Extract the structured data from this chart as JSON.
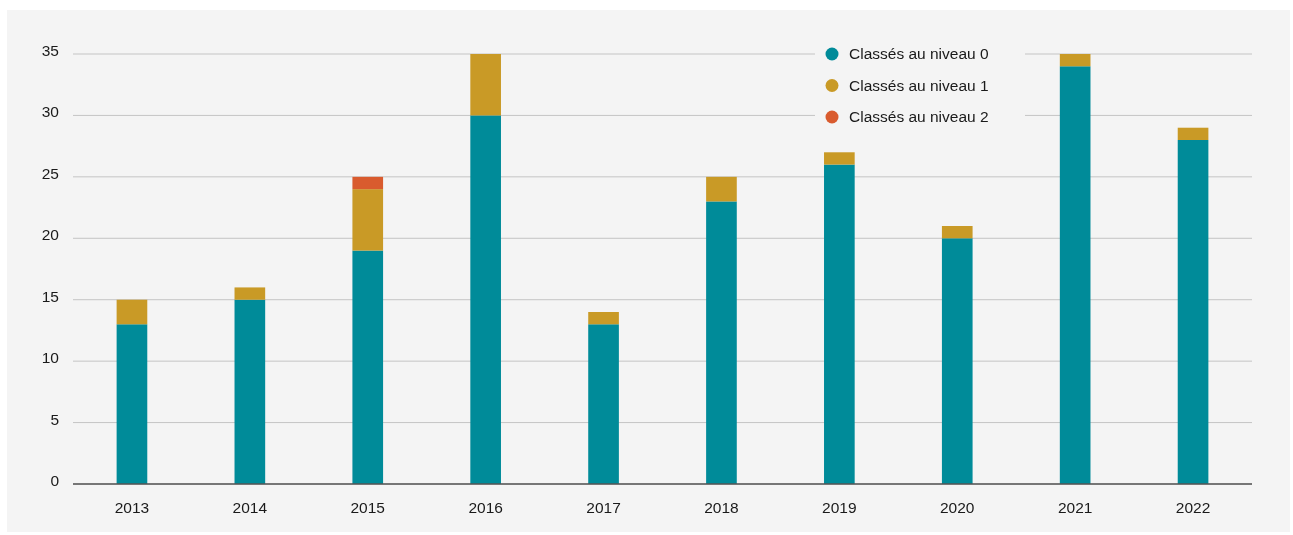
{
  "chart_data": {
    "type": "bar",
    "stacked": true,
    "categories": [
      "2013",
      "2014",
      "2015",
      "2016",
      "2017",
      "2018",
      "2019",
      "2020",
      "2021",
      "2022"
    ],
    "series": [
      {
        "name": "Classés au niveau 0",
        "color": "#008b99",
        "values": [
          13,
          15,
          19,
          30,
          13,
          23,
          26,
          20,
          34,
          28
        ]
      },
      {
        "name": "Classés au niveau 1",
        "color": "#c99a26",
        "values": [
          2,
          1,
          5,
          5,
          1,
          2,
          1,
          1,
          1,
          1
        ]
      },
      {
        "name": "Classés au niveau 2",
        "color": "#d95b2e",
        "values": [
          null,
          null,
          1,
          null,
          null,
          null,
          null,
          null,
          null,
          null
        ]
      }
    ],
    "ylim": [
      0,
      35
    ],
    "yticks": [
      0,
      5,
      10,
      15,
      20,
      25,
      30,
      35
    ],
    "grid": "y",
    "legend": "top right"
  }
}
